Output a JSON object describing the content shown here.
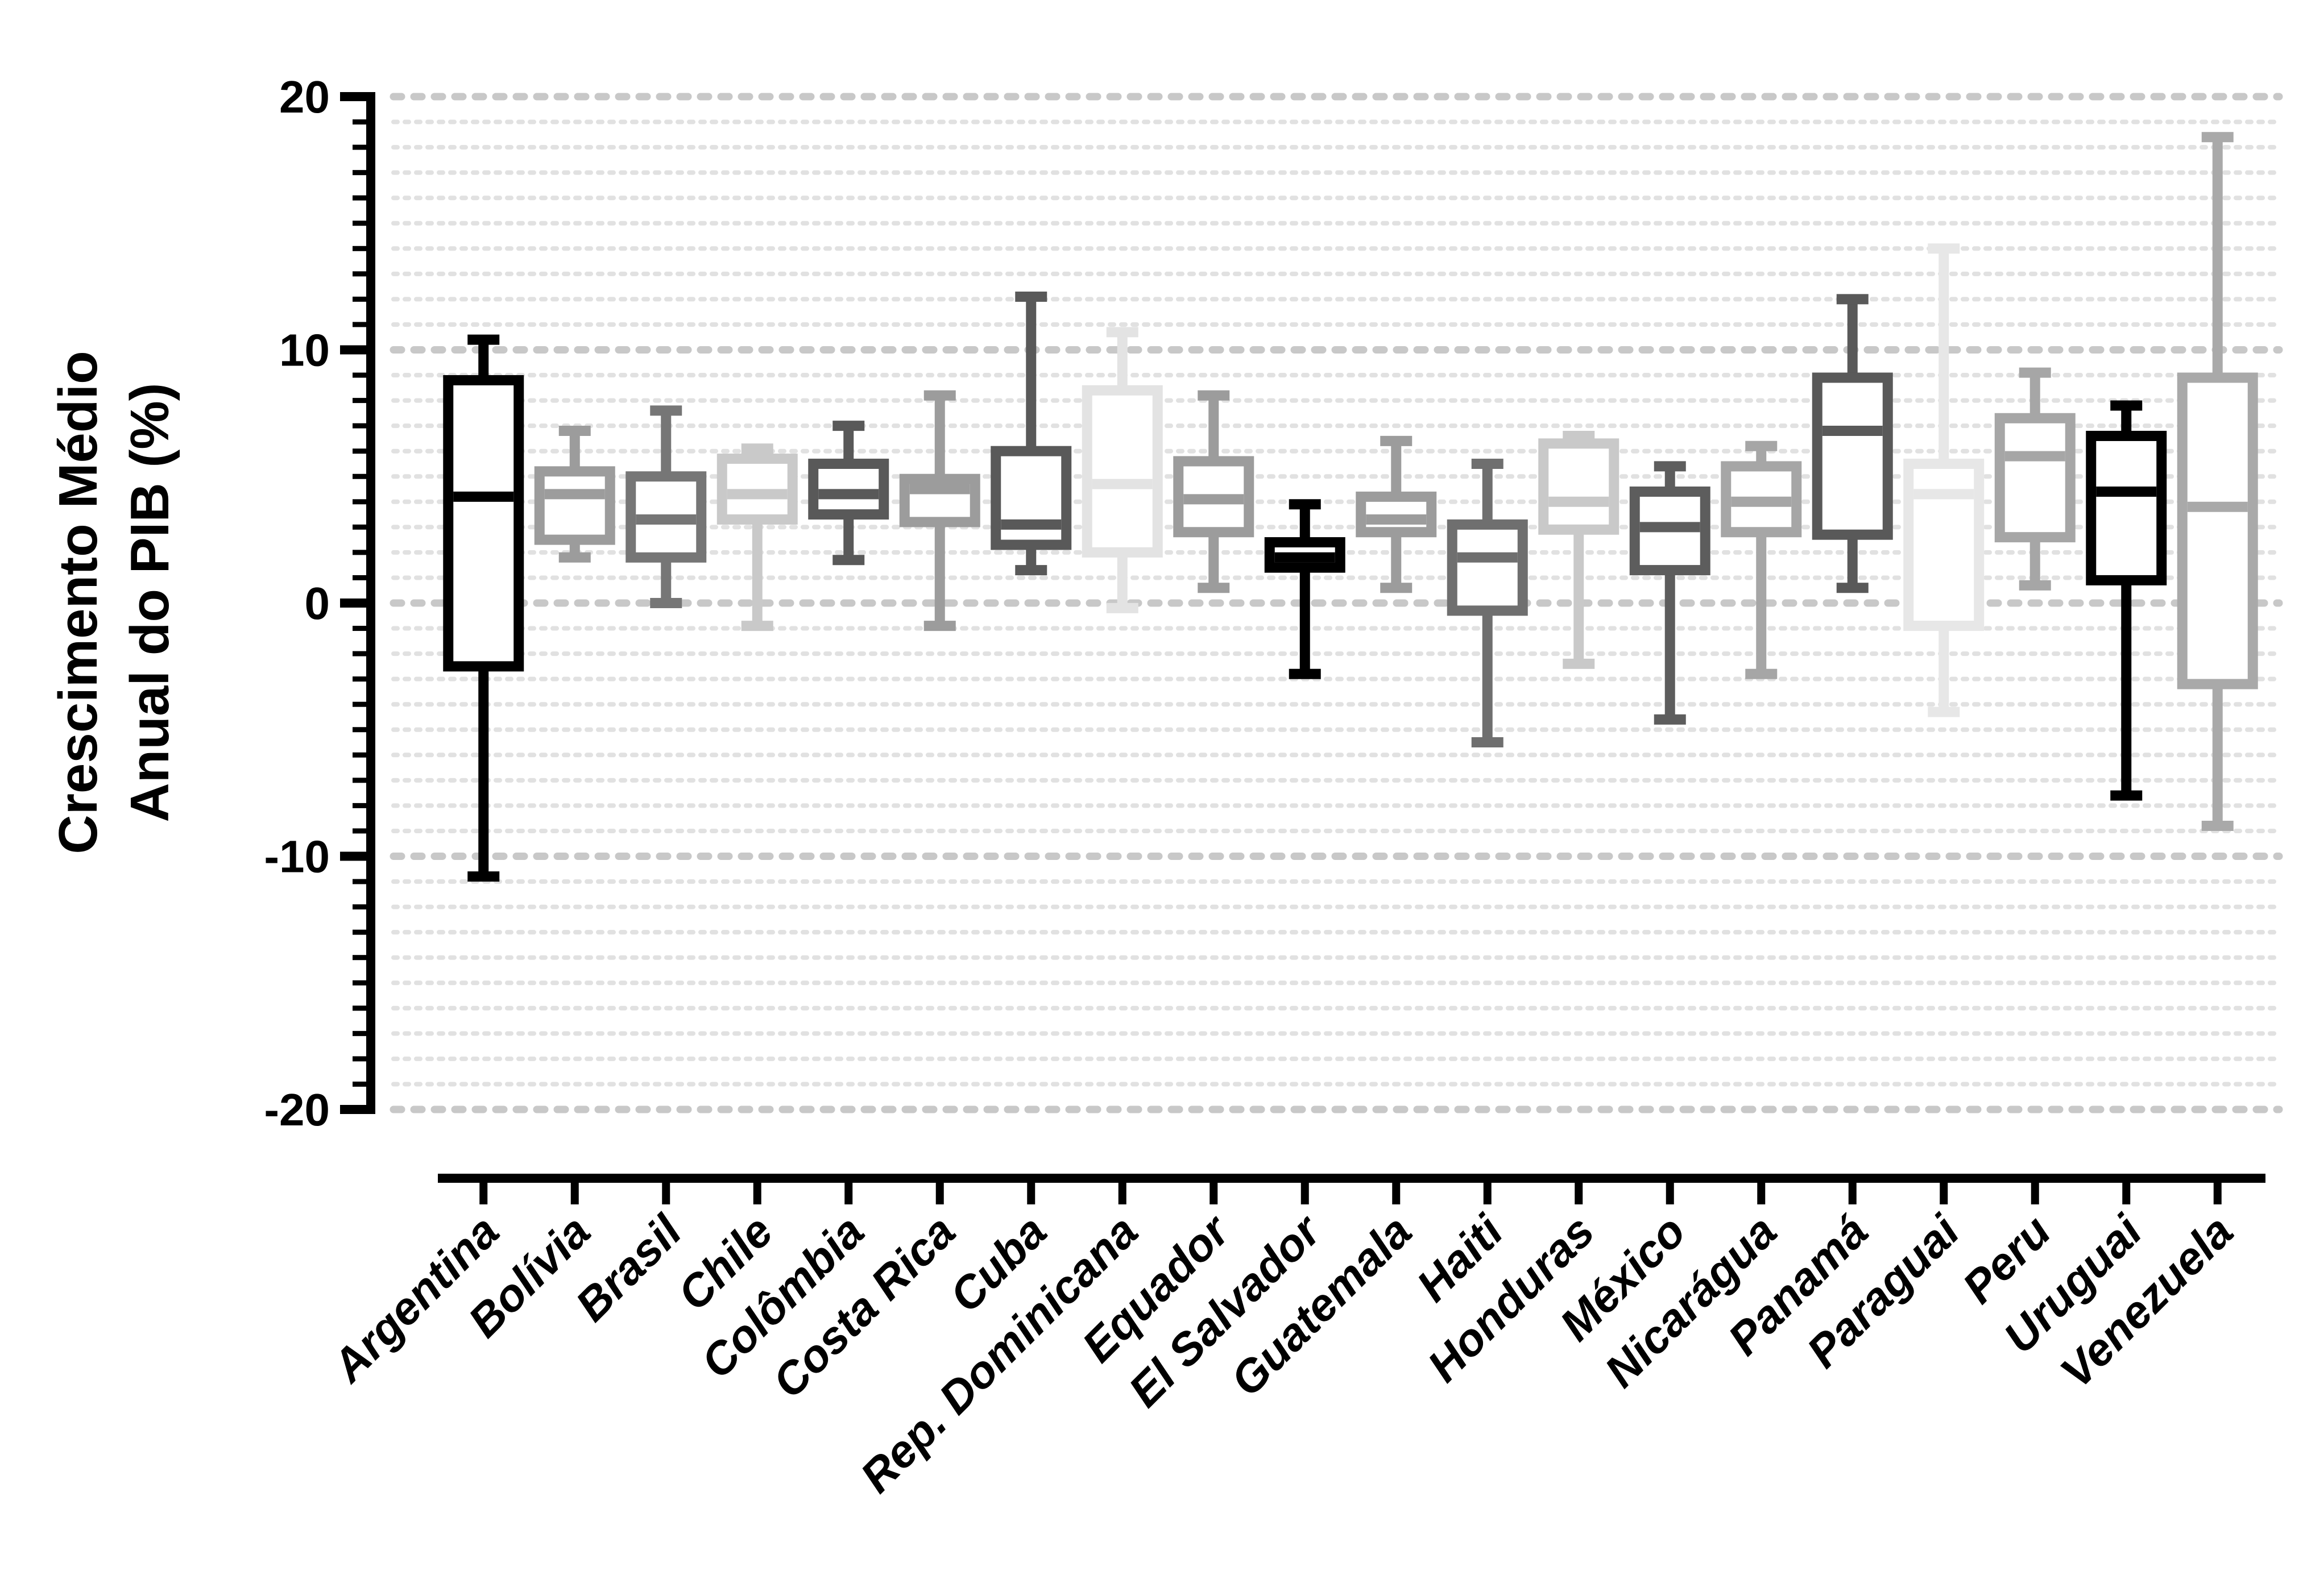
{
  "page": {
    "background": "#ffffff",
    "frame": "offset axes, no top/right frame"
  },
  "y_axis": {
    "title_lines": [
      "Crescimento Médio",
      "Anual do PIB (%)"
    ],
    "tick_labels": [
      "20",
      "10",
      "0",
      "-10",
      "-20"
    ],
    "tick_values": [
      20,
      10,
      0,
      -10,
      -20
    ],
    "range": [
      -20,
      20
    ],
    "minor_tick_step": 1,
    "axis_color": "#000000"
  },
  "x_axis": {
    "categories": [
      "Argentina",
      "Bolívia",
      "Brasil",
      "Chile",
      "Colômbia",
      "Costa Rica",
      "Cuba",
      "Rep. Dominicana",
      "Equador",
      "El Salvador",
      "Guatemala",
      "Haiti",
      "Honduras",
      "México",
      "Nicarágua",
      "Panamá",
      "Paraguai",
      "Peru",
      "Uruguai",
      "Venezuela"
    ],
    "label_rotation_deg": -45,
    "axis_color": "#000000"
  },
  "grid": {
    "major_color": "#c8c8c8",
    "minor_color": "#e1e1e1",
    "style": "dotted horizontal lines, minor every 1 unit, major every 10 units"
  },
  "chart_data": {
    "type": "box",
    "title": "",
    "xlabel": "",
    "ylabel": "Crescimento Médio Anual do PIB (%)",
    "ylim": [
      -20,
      20
    ],
    "grid": "horizontal dotted",
    "legend": "none",
    "categories": [
      "Argentina",
      "Bolívia",
      "Brasil",
      "Chile",
      "Colômbia",
      "Costa Rica",
      "Cuba",
      "Rep. Dominicana",
      "Equador",
      "El Salvador",
      "Guatemala",
      "Haiti",
      "Honduras",
      "México",
      "Nicarágua",
      "Panamá",
      "Paraguai",
      "Peru",
      "Uruguai",
      "Venezuela"
    ],
    "series": [
      {
        "name": "Argentina",
        "color": "#000000",
        "min": -10.8,
        "q1": -2.5,
        "median": 4.2,
        "q3": 8.8,
        "max": 10.4
      },
      {
        "name": "Bolívia",
        "color": "#9c9c9c",
        "min": 1.8,
        "q1": 2.5,
        "median": 4.3,
        "q3": 5.2,
        "max": 6.8
      },
      {
        "name": "Brasil",
        "color": "#767676",
        "min": 0.0,
        "q1": 1.8,
        "median": 3.3,
        "q3": 5.0,
        "max": 7.6
      },
      {
        "name": "Chile",
        "color": "#c9c9c9",
        "min": -0.9,
        "q1": 3.3,
        "median": 4.3,
        "q3": 5.7,
        "max": 6.1
      },
      {
        "name": "Colômbia",
        "color": "#595959",
        "min": 1.7,
        "q1": 3.5,
        "median": 4.3,
        "q3": 5.5,
        "max": 7.0
      },
      {
        "name": "Costa Rica",
        "color": "#9c9c9c",
        "min": -0.9,
        "q1": 3.2,
        "median": 4.5,
        "q3": 4.9,
        "max": 8.2
      },
      {
        "name": "Cuba",
        "color": "#595959",
        "min": 1.3,
        "q1": 2.3,
        "median": 3.1,
        "q3": 6.0,
        "max": 12.1
      },
      {
        "name": "Rep. Dominicana",
        "color": "#e3e3e3",
        "min": -0.2,
        "q1": 2.0,
        "median": 4.7,
        "q3": 8.4,
        "max": 10.7
      },
      {
        "name": "Equador",
        "color": "#9c9c9c",
        "min": 0.6,
        "q1": 2.8,
        "median": 4.1,
        "q3": 5.6,
        "max": 8.2
      },
      {
        "name": "El Salvador",
        "color": "#000000",
        "min": -2.8,
        "q1": 1.4,
        "median": 1.8,
        "q3": 2.4,
        "max": 3.9
      },
      {
        "name": "Guatemala",
        "color": "#9c9c9c",
        "min": 0.6,
        "q1": 2.8,
        "median": 3.3,
        "q3": 4.2,
        "max": 6.4
      },
      {
        "name": "Haiti",
        "color": "#6f6f6f",
        "min": -5.5,
        "q1": -0.3,
        "median": 1.8,
        "q3": 3.1,
        "max": 5.5
      },
      {
        "name": "Honduras",
        "color": "#c9c9c9",
        "min": -2.4,
        "q1": 2.9,
        "median": 4.0,
        "q3": 6.3,
        "max": 6.6
      },
      {
        "name": "México",
        "color": "#5d5d5d",
        "min": -4.6,
        "q1": 1.3,
        "median": 3.0,
        "q3": 4.4,
        "max": 5.4
      },
      {
        "name": "Nicarágua",
        "color": "#a6a6a6",
        "min": -2.8,
        "q1": 2.8,
        "median": 4.0,
        "q3": 5.4,
        "max": 6.2
      },
      {
        "name": "Panamá",
        "color": "#595959",
        "min": 0.6,
        "q1": 2.7,
        "median": 6.8,
        "q3": 8.9,
        "max": 12.0
      },
      {
        "name": "Paraguai",
        "color": "#e7e7e7",
        "min": -4.3,
        "q1": -0.9,
        "median": 4.3,
        "q3": 5.5,
        "max": 14.0
      },
      {
        "name": "Peru",
        "color": "#a6a6a6",
        "min": 0.7,
        "q1": 2.6,
        "median": 5.8,
        "q3": 7.3,
        "max": 9.1
      },
      {
        "name": "Uruguai",
        "color": "#000000",
        "min": -7.6,
        "q1": 0.9,
        "median": 4.4,
        "q3": 6.6,
        "max": 7.8
      },
      {
        "name": "Venezuela",
        "color": "#a9a9a9",
        "min": -8.8,
        "q1": -3.2,
        "median": 3.8,
        "q3": 8.9,
        "max": 18.4
      }
    ]
  }
}
